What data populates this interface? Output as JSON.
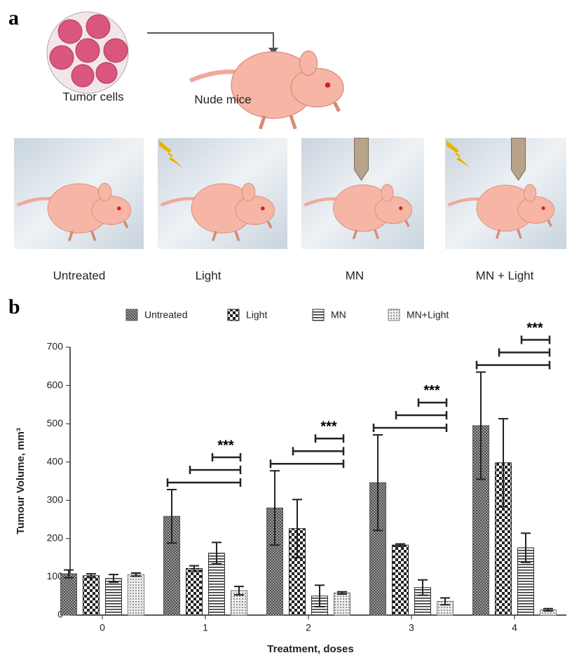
{
  "panel_labels": [
    "a",
    "b"
  ],
  "diagram": {
    "source_label": "Tumor cells",
    "target_label": "Nude mice",
    "groups": [
      "Untreated",
      "Light",
      "MN",
      "MN + Light"
    ]
  },
  "chart_data": {
    "type": "bar",
    "xlabel": "Treatment, doses",
    "ylabel": "Tumour Volume, mm³",
    "categories": [
      "0",
      "1",
      "2",
      "3",
      "4"
    ],
    "series": [
      {
        "name": "Untreated",
        "color": "#555555",
        "values": [
          108,
          258,
          280,
          346,
          495
        ],
        "errors": [
          10,
          70,
          97,
          125,
          140
        ]
      },
      {
        "name": "Light",
        "color": "#222222",
        "values": [
          103,
          122,
          226,
          183,
          398
        ],
        "errors": [
          5,
          7,
          76,
          3,
          115
        ]
      },
      {
        "name": "MN",
        "color": "#333333",
        "values": [
          96,
          162,
          50,
          72,
          176
        ],
        "errors": [
          10,
          28,
          28,
          20,
          38
        ]
      },
      {
        "name": "MN+Light",
        "color": "#777777",
        "values": [
          106,
          64,
          58,
          36,
          14
        ],
        "errors": [
          4,
          11,
          3,
          9,
          3
        ]
      }
    ],
    "annotations": [
      null,
      "***",
      "***",
      "***",
      "***"
    ],
    "ylim": [
      0,
      700
    ],
    "yticks": [
      0,
      100,
      200,
      300,
      400,
      500,
      600,
      700
    ]
  }
}
